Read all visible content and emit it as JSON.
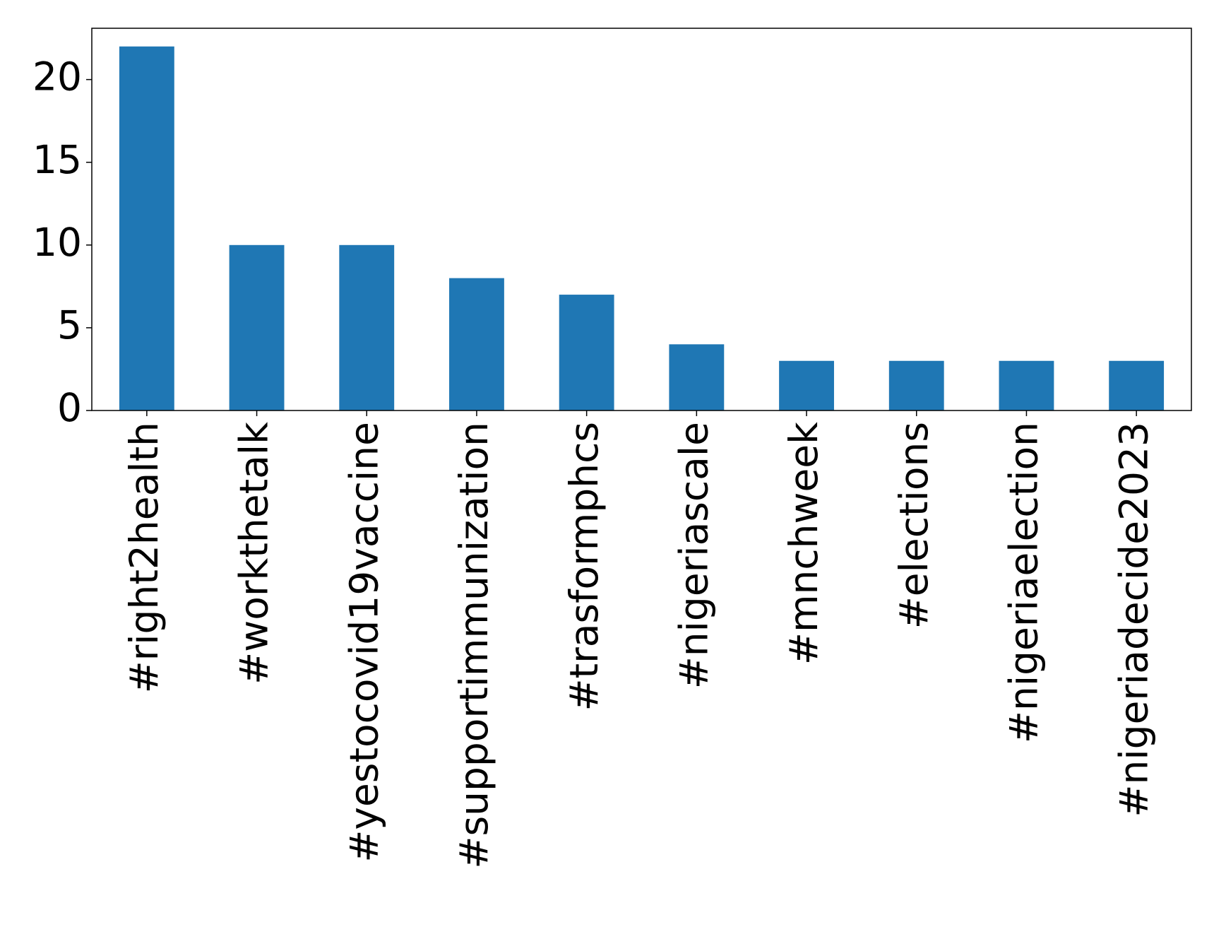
{
  "chart_data": {
    "type": "bar",
    "categories": [
      "#right2health",
      "#workthetalk",
      "#yestocovid19vaccine",
      "#supportimmunization",
      "#trasformphcs",
      "#nigeriascale",
      "#mnchweek",
      "#elections",
      "#nigeriaelection",
      "#nigeriadecide2023"
    ],
    "values": [
      22,
      10,
      10,
      8,
      7,
      4,
      3,
      3,
      3,
      3
    ],
    "color": "#1f77b4",
    "ylim": [
      0,
      23.1
    ],
    "yticks": [
      0,
      5,
      10,
      15,
      20
    ],
    "grid": false
  }
}
